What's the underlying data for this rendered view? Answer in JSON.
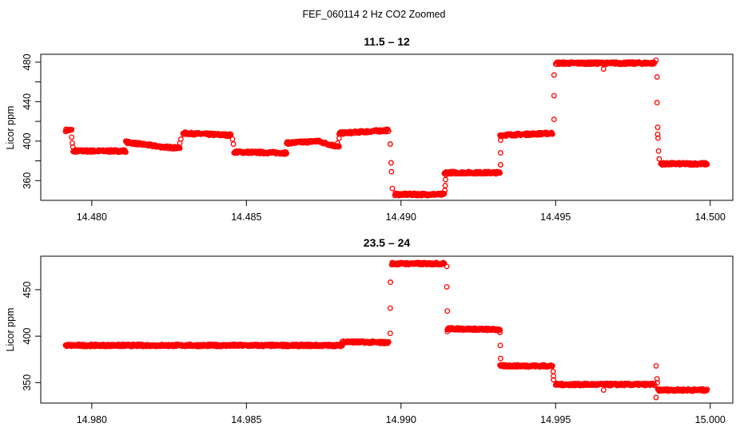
{
  "figure": {
    "title": "FEF_060114  2 Hz CO2 Zoomed",
    "marker_color": "#ff0000"
  },
  "chart_data": [
    {
      "type": "scatter",
      "title": "11.5 – 12",
      "xlabel": "",
      "ylabel": "Licor ppm",
      "xlim": [
        14.47835,
        14.50073
      ],
      "ylim": [
        340,
        488
      ],
      "xticks": [
        14.48,
        14.485,
        14.49,
        14.495,
        14.5
      ],
      "xtick_labels": [
        "14.480",
        "14.485",
        "14.490",
        "14.495",
        "14.500"
      ],
      "yticks": [
        360,
        380,
        400,
        420,
        440,
        460,
        480
      ],
      "ytick_labels": [
        "360",
        "",
        "400",
        "",
        "440",
        "",
        "480"
      ],
      "grid": false,
      "segments": [
        {
          "x0": 14.47915,
          "x1": 14.47935,
          "y0": 411,
          "y1": 411
        },
        {
          "x0": 14.4794,
          "x1": 14.4811,
          "y0": 390,
          "y1": 390
        },
        {
          "x0": 14.4811,
          "x1": 14.4823,
          "y0": 399,
          "y1": 394
        },
        {
          "x0": 14.4823,
          "x1": 14.48285,
          "y0": 394,
          "y1": 393
        },
        {
          "x0": 14.48295,
          "x1": 14.4845,
          "y0": 408,
          "y1": 406
        },
        {
          "x0": 14.4846,
          "x1": 14.4863,
          "y0": 389,
          "y1": 388
        },
        {
          "x0": 14.4863,
          "x1": 14.4873,
          "y0": 398,
          "y1": 400
        },
        {
          "x0": 14.4873,
          "x1": 14.488,
          "y0": 400,
          "y1": 394
        },
        {
          "x0": 14.488,
          "x1": 14.4896,
          "y0": 408,
          "y1": 411
        },
        {
          "x0": 14.4898,
          "x1": 14.4914,
          "y0": 346,
          "y1": 346
        },
        {
          "x0": 14.4914,
          "x1": 14.4932,
          "y0": 368,
          "y1": 368
        },
        {
          "x0": 14.4932,
          "x1": 14.4949,
          "y0": 406,
          "y1": 408
        },
        {
          "x0": 14.495,
          "x1": 14.4982,
          "y0": 479,
          "y1": 479
        },
        {
          "x0": 14.4984,
          "x1": 14.4999,
          "y0": 377,
          "y1": 377
        }
      ],
      "isolated_points": [
        {
          "x": 14.47935,
          "y": 404
        },
        {
          "x": 14.47937,
          "y": 398
        },
        {
          "x": 14.47939,
          "y": 394
        },
        {
          "x": 14.48285,
          "y": 398
        },
        {
          "x": 14.48288,
          "y": 402
        },
        {
          "x": 14.48455,
          "y": 402
        },
        {
          "x": 14.48458,
          "y": 397
        },
        {
          "x": 14.48795,
          "y": 398
        },
        {
          "x": 14.488,
          "y": 403
        },
        {
          "x": 14.48965,
          "y": 397
        },
        {
          "x": 14.48968,
          "y": 378
        },
        {
          "x": 14.48969,
          "y": 369
        },
        {
          "x": 14.48972,
          "y": 352
        },
        {
          "x": 14.49142,
          "y": 350
        },
        {
          "x": 14.49143,
          "y": 355
        },
        {
          "x": 14.49144,
          "y": 361
        },
        {
          "x": 14.49145,
          "y": 366
        },
        {
          "x": 14.49322,
          "y": 376
        },
        {
          "x": 14.49322,
          "y": 388
        },
        {
          "x": 14.49322,
          "y": 401
        },
        {
          "x": 14.49495,
          "y": 422
        },
        {
          "x": 14.49495,
          "y": 446
        },
        {
          "x": 14.49495,
          "y": 467
        },
        {
          "x": 14.49655,
          "y": 473
        },
        {
          "x": 14.49825,
          "y": 482
        },
        {
          "x": 14.49828,
          "y": 465
        },
        {
          "x": 14.49828,
          "y": 439
        },
        {
          "x": 14.4983,
          "y": 414
        },
        {
          "x": 14.4983,
          "y": 407
        },
        {
          "x": 14.49831,
          "y": 403
        },
        {
          "x": 14.49833,
          "y": 390
        },
        {
          "x": 14.49835,
          "y": 382
        }
      ]
    },
    {
      "type": "scatter",
      "title": "23.5 – 24",
      "xlabel": "",
      "ylabel": "Licor ppm",
      "xlim": [
        14.97835,
        15.00073
      ],
      "ylim": [
        328,
        486
      ],
      "xticks": [
        14.98,
        14.985,
        14.99,
        14.995,
        15.0
      ],
      "xtick_labels": [
        "14.980",
        "14.985",
        "14.990",
        "14.995",
        "15.000"
      ],
      "yticks": [
        350,
        400,
        450
      ],
      "ytick_labels": [
        "350",
        "400",
        "450"
      ],
      "grid": false,
      "segments": [
        {
          "x0": 14.97915,
          "x1": 14.9881,
          "y0": 390,
          "y1": 390
        },
        {
          "x0": 14.9881,
          "x1": 14.9896,
          "y0": 394,
          "y1": 393
        },
        {
          "x0": 14.9897,
          "x1": 14.9914,
          "y0": 478,
          "y1": 478
        },
        {
          "x0": 14.9915,
          "x1": 14.9932,
          "y0": 408,
          "y1": 407
        },
        {
          "x0": 14.9932,
          "x1": 14.9949,
          "y0": 368,
          "y1": 368
        },
        {
          "x0": 14.995,
          "x1": 14.9982,
          "y0": 348,
          "y1": 348
        },
        {
          "x0": 14.9983,
          "x1": 14.9999,
          "y0": 342,
          "y1": 342
        }
      ],
      "isolated_points": [
        {
          "x": 14.98965,
          "y": 403
        },
        {
          "x": 14.98965,
          "y": 430
        },
        {
          "x": 14.98966,
          "y": 458
        },
        {
          "x": 14.99148,
          "y": 475
        },
        {
          "x": 14.99148,
          "y": 453
        },
        {
          "x": 14.9915,
          "y": 427
        },
        {
          "x": 14.9915,
          "y": 405
        },
        {
          "x": 14.9932,
          "y": 404
        },
        {
          "x": 14.99321,
          "y": 390
        },
        {
          "x": 14.99322,
          "y": 376
        },
        {
          "x": 14.99492,
          "y": 362
        },
        {
          "x": 14.99493,
          "y": 357
        },
        {
          "x": 14.99493,
          "y": 353
        },
        {
          "x": 14.99655,
          "y": 342
        },
        {
          "x": 14.99825,
          "y": 368
        },
        {
          "x": 14.99828,
          "y": 354
        },
        {
          "x": 14.99829,
          "y": 350
        },
        {
          "x": 14.99825,
          "y": 334
        }
      ]
    }
  ]
}
